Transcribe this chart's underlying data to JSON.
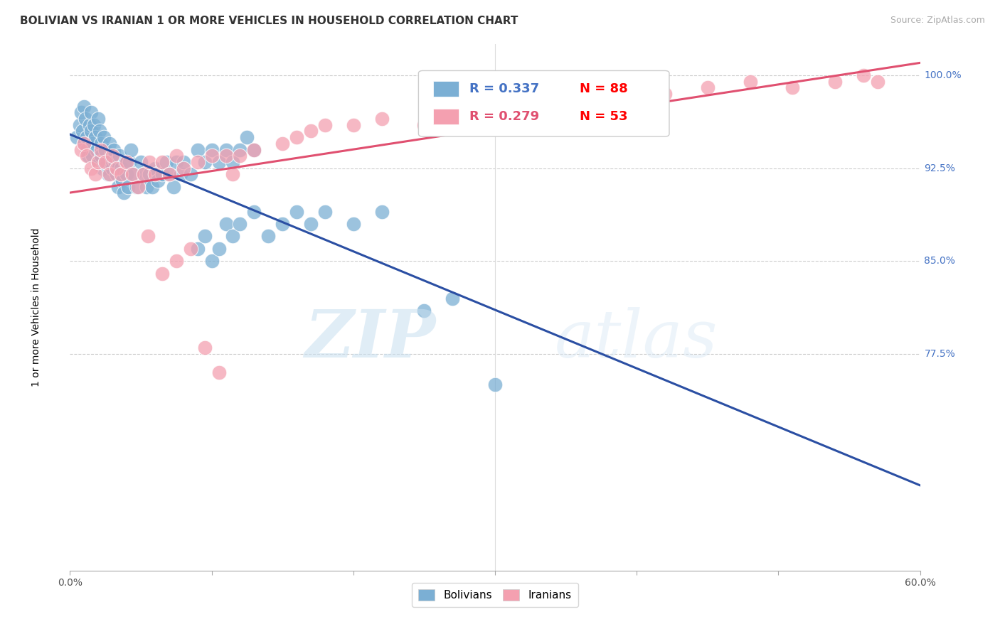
{
  "title": "BOLIVIAN VS IRANIAN 1 OR MORE VEHICLES IN HOUSEHOLD CORRELATION CHART",
  "source": "Source: ZipAtlas.com",
  "ylabel": "1 or more Vehicles in Household",
  "x_min": 0.0,
  "x_max": 0.6,
  "y_min": 0.6,
  "y_max": 1.025,
  "y_ticks": [
    0.775,
    0.85,
    0.925,
    1.0
  ],
  "y_tick_labels": [
    "77.5%",
    "85.0%",
    "92.5%",
    "100.0%"
  ],
  "bolivian_color": "#7bafd4",
  "iranian_color": "#f4a0b0",
  "bolivian_line_color": "#2b4fa3",
  "iranian_line_color": "#e05070",
  "bolivian_R": 0.337,
  "bolivian_N": 88,
  "iranian_R": 0.279,
  "iranian_N": 53,
  "bolivian_x": [
    0.005,
    0.007,
    0.008,
    0.009,
    0.01,
    0.01,
    0.011,
    0.012,
    0.012,
    0.013,
    0.014,
    0.015,
    0.015,
    0.016,
    0.016,
    0.017,
    0.018,
    0.019,
    0.02,
    0.02,
    0.021,
    0.022,
    0.022,
    0.023,
    0.024,
    0.025,
    0.026,
    0.027,
    0.028,
    0.029,
    0.03,
    0.031,
    0.032,
    0.033,
    0.034,
    0.035,
    0.036,
    0.037,
    0.038,
    0.039,
    0.04,
    0.041,
    0.042,
    0.043,
    0.045,
    0.047,
    0.05,
    0.052,
    0.054,
    0.056,
    0.058,
    0.06,
    0.062,
    0.065,
    0.068,
    0.07,
    0.073,
    0.075,
    0.078,
    0.08,
    0.085,
    0.09,
    0.095,
    0.1,
    0.105,
    0.11,
    0.115,
    0.12,
    0.125,
    0.13,
    0.14,
    0.15,
    0.16,
    0.17,
    0.18,
    0.2,
    0.22,
    0.25,
    0.27,
    0.3,
    0.09,
    0.095,
    0.1,
    0.105,
    0.11,
    0.115,
    0.12,
    0.13
  ],
  "bolivian_y": [
    0.95,
    0.96,
    0.97,
    0.955,
    0.945,
    0.975,
    0.965,
    0.95,
    0.94,
    0.935,
    0.96,
    0.97,
    0.955,
    0.945,
    0.935,
    0.96,
    0.95,
    0.94,
    0.93,
    0.965,
    0.955,
    0.945,
    0.935,
    0.925,
    0.95,
    0.94,
    0.93,
    0.92,
    0.945,
    0.935,
    0.925,
    0.94,
    0.93,
    0.92,
    0.91,
    0.935,
    0.925,
    0.915,
    0.905,
    0.93,
    0.92,
    0.91,
    0.93,
    0.94,
    0.92,
    0.91,
    0.93,
    0.92,
    0.91,
    0.92,
    0.91,
    0.925,
    0.915,
    0.92,
    0.93,
    0.92,
    0.91,
    0.93,
    0.92,
    0.93,
    0.92,
    0.94,
    0.93,
    0.94,
    0.93,
    0.94,
    0.93,
    0.94,
    0.95,
    0.94,
    0.87,
    0.88,
    0.89,
    0.88,
    0.89,
    0.88,
    0.89,
    0.81,
    0.82,
    0.75,
    0.86,
    0.87,
    0.85,
    0.86,
    0.88,
    0.87,
    0.88,
    0.89
  ],
  "iranian_x": [
    0.008,
    0.01,
    0.012,
    0.015,
    0.018,
    0.02,
    0.022,
    0.025,
    0.028,
    0.03,
    0.033,
    0.036,
    0.04,
    0.044,
    0.048,
    0.052,
    0.056,
    0.06,
    0.065,
    0.07,
    0.075,
    0.08,
    0.09,
    0.1,
    0.11,
    0.12,
    0.13,
    0.15,
    0.16,
    0.17,
    0.18,
    0.2,
    0.22,
    0.25,
    0.28,
    0.3,
    0.32,
    0.35,
    0.38,
    0.42,
    0.45,
    0.48,
    0.51,
    0.54,
    0.56,
    0.57,
    0.055,
    0.065,
    0.075,
    0.085,
    0.095,
    0.105,
    0.115
  ],
  "iranian_y": [
    0.94,
    0.945,
    0.935,
    0.925,
    0.92,
    0.93,
    0.94,
    0.93,
    0.92,
    0.935,
    0.925,
    0.92,
    0.93,
    0.92,
    0.91,
    0.92,
    0.93,
    0.92,
    0.93,
    0.92,
    0.935,
    0.925,
    0.93,
    0.935,
    0.935,
    0.935,
    0.94,
    0.945,
    0.95,
    0.955,
    0.96,
    0.96,
    0.965,
    0.96,
    0.97,
    0.975,
    0.965,
    0.97,
    0.975,
    0.985,
    0.99,
    0.995,
    0.99,
    0.995,
    1.0,
    0.995,
    0.87,
    0.84,
    0.85,
    0.86,
    0.78,
    0.76,
    0.92
  ],
  "watermark_zip": "ZIP",
  "watermark_atlas": "atlas",
  "background_color": "#ffffff",
  "grid_color": "#cccccc",
  "title_fontsize": 11,
  "tick_label_color_y": "#4472c4",
  "legend_R_color_bolivian": "#4472c4",
  "legend_R_color_iranian": "#e05070",
  "legend_N_color_bolivian": "#ff0000",
  "legend_N_color_iranian": "#ff0000"
}
